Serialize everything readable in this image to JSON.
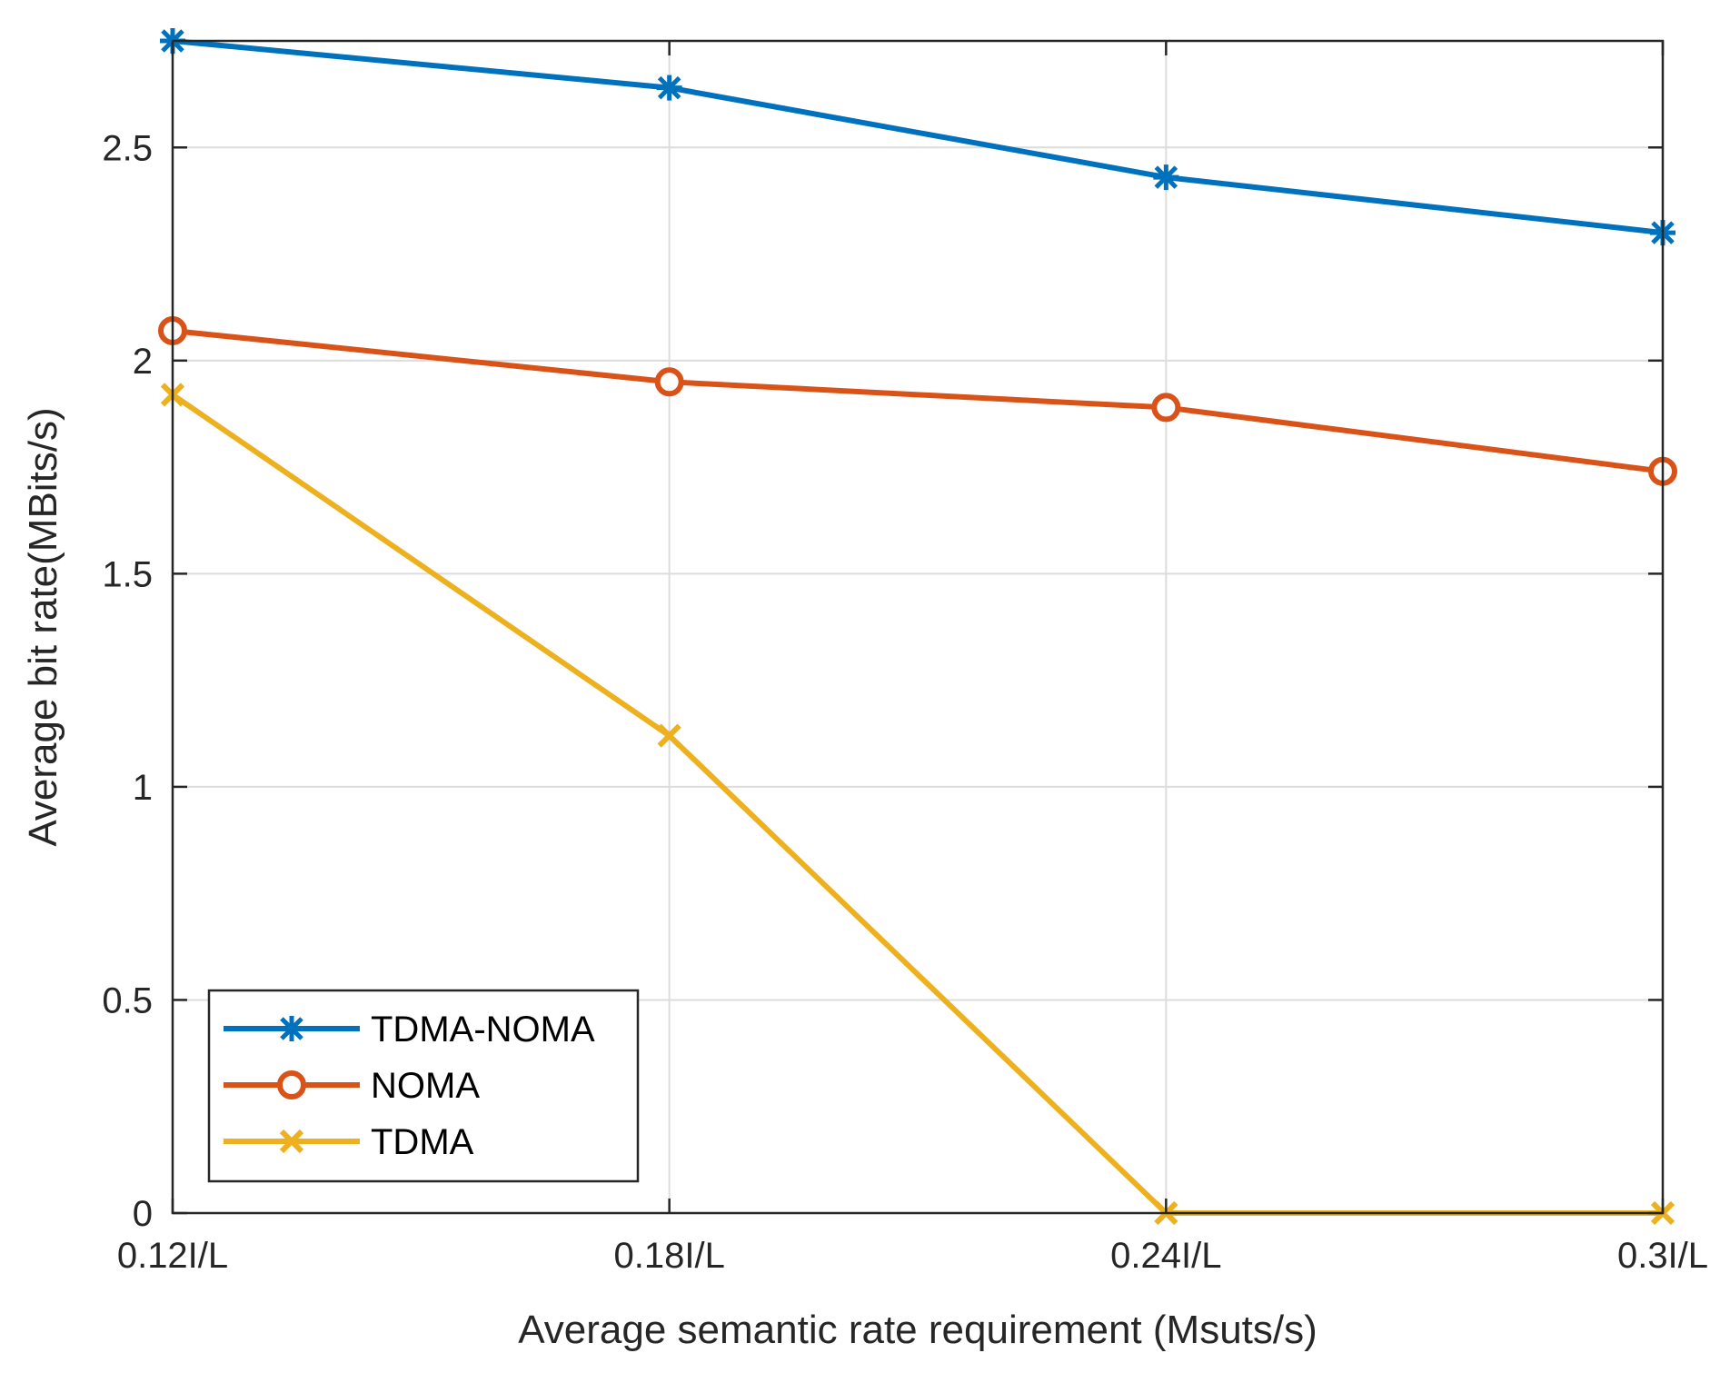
{
  "chart_data": {
    "type": "line",
    "title": "",
    "xlabel": "Average semantic rate requirement (Msuts/s)",
    "ylabel": "Average bit rate(MBits/s)",
    "categories": [
      "0.12I/L",
      "0.18I/L",
      "0.24I/L",
      "0.3I/L"
    ],
    "ylim": [
      0,
      2.75
    ],
    "yticks": [
      0,
      0.5,
      1,
      1.5,
      2,
      2.5
    ],
    "ytick_labels": [
      "0",
      "0.5",
      "1",
      "1.5",
      "2",
      "2.5"
    ],
    "grid": true,
    "legend_position": "bottom-left",
    "series": [
      {
        "name": "TDMA-NOMA",
        "color": "#0072BD",
        "marker": "asterisk",
        "values": [
          2.75,
          2.64,
          2.43,
          2.3
        ]
      },
      {
        "name": "NOMA",
        "color": "#D95319",
        "marker": "circle",
        "values": [
          2.07,
          1.95,
          1.89,
          1.74
        ]
      },
      {
        "name": "TDMA",
        "color": "#EDB120",
        "marker": "x",
        "values": [
          1.92,
          1.12,
          0.0,
          0.0
        ]
      }
    ]
  }
}
